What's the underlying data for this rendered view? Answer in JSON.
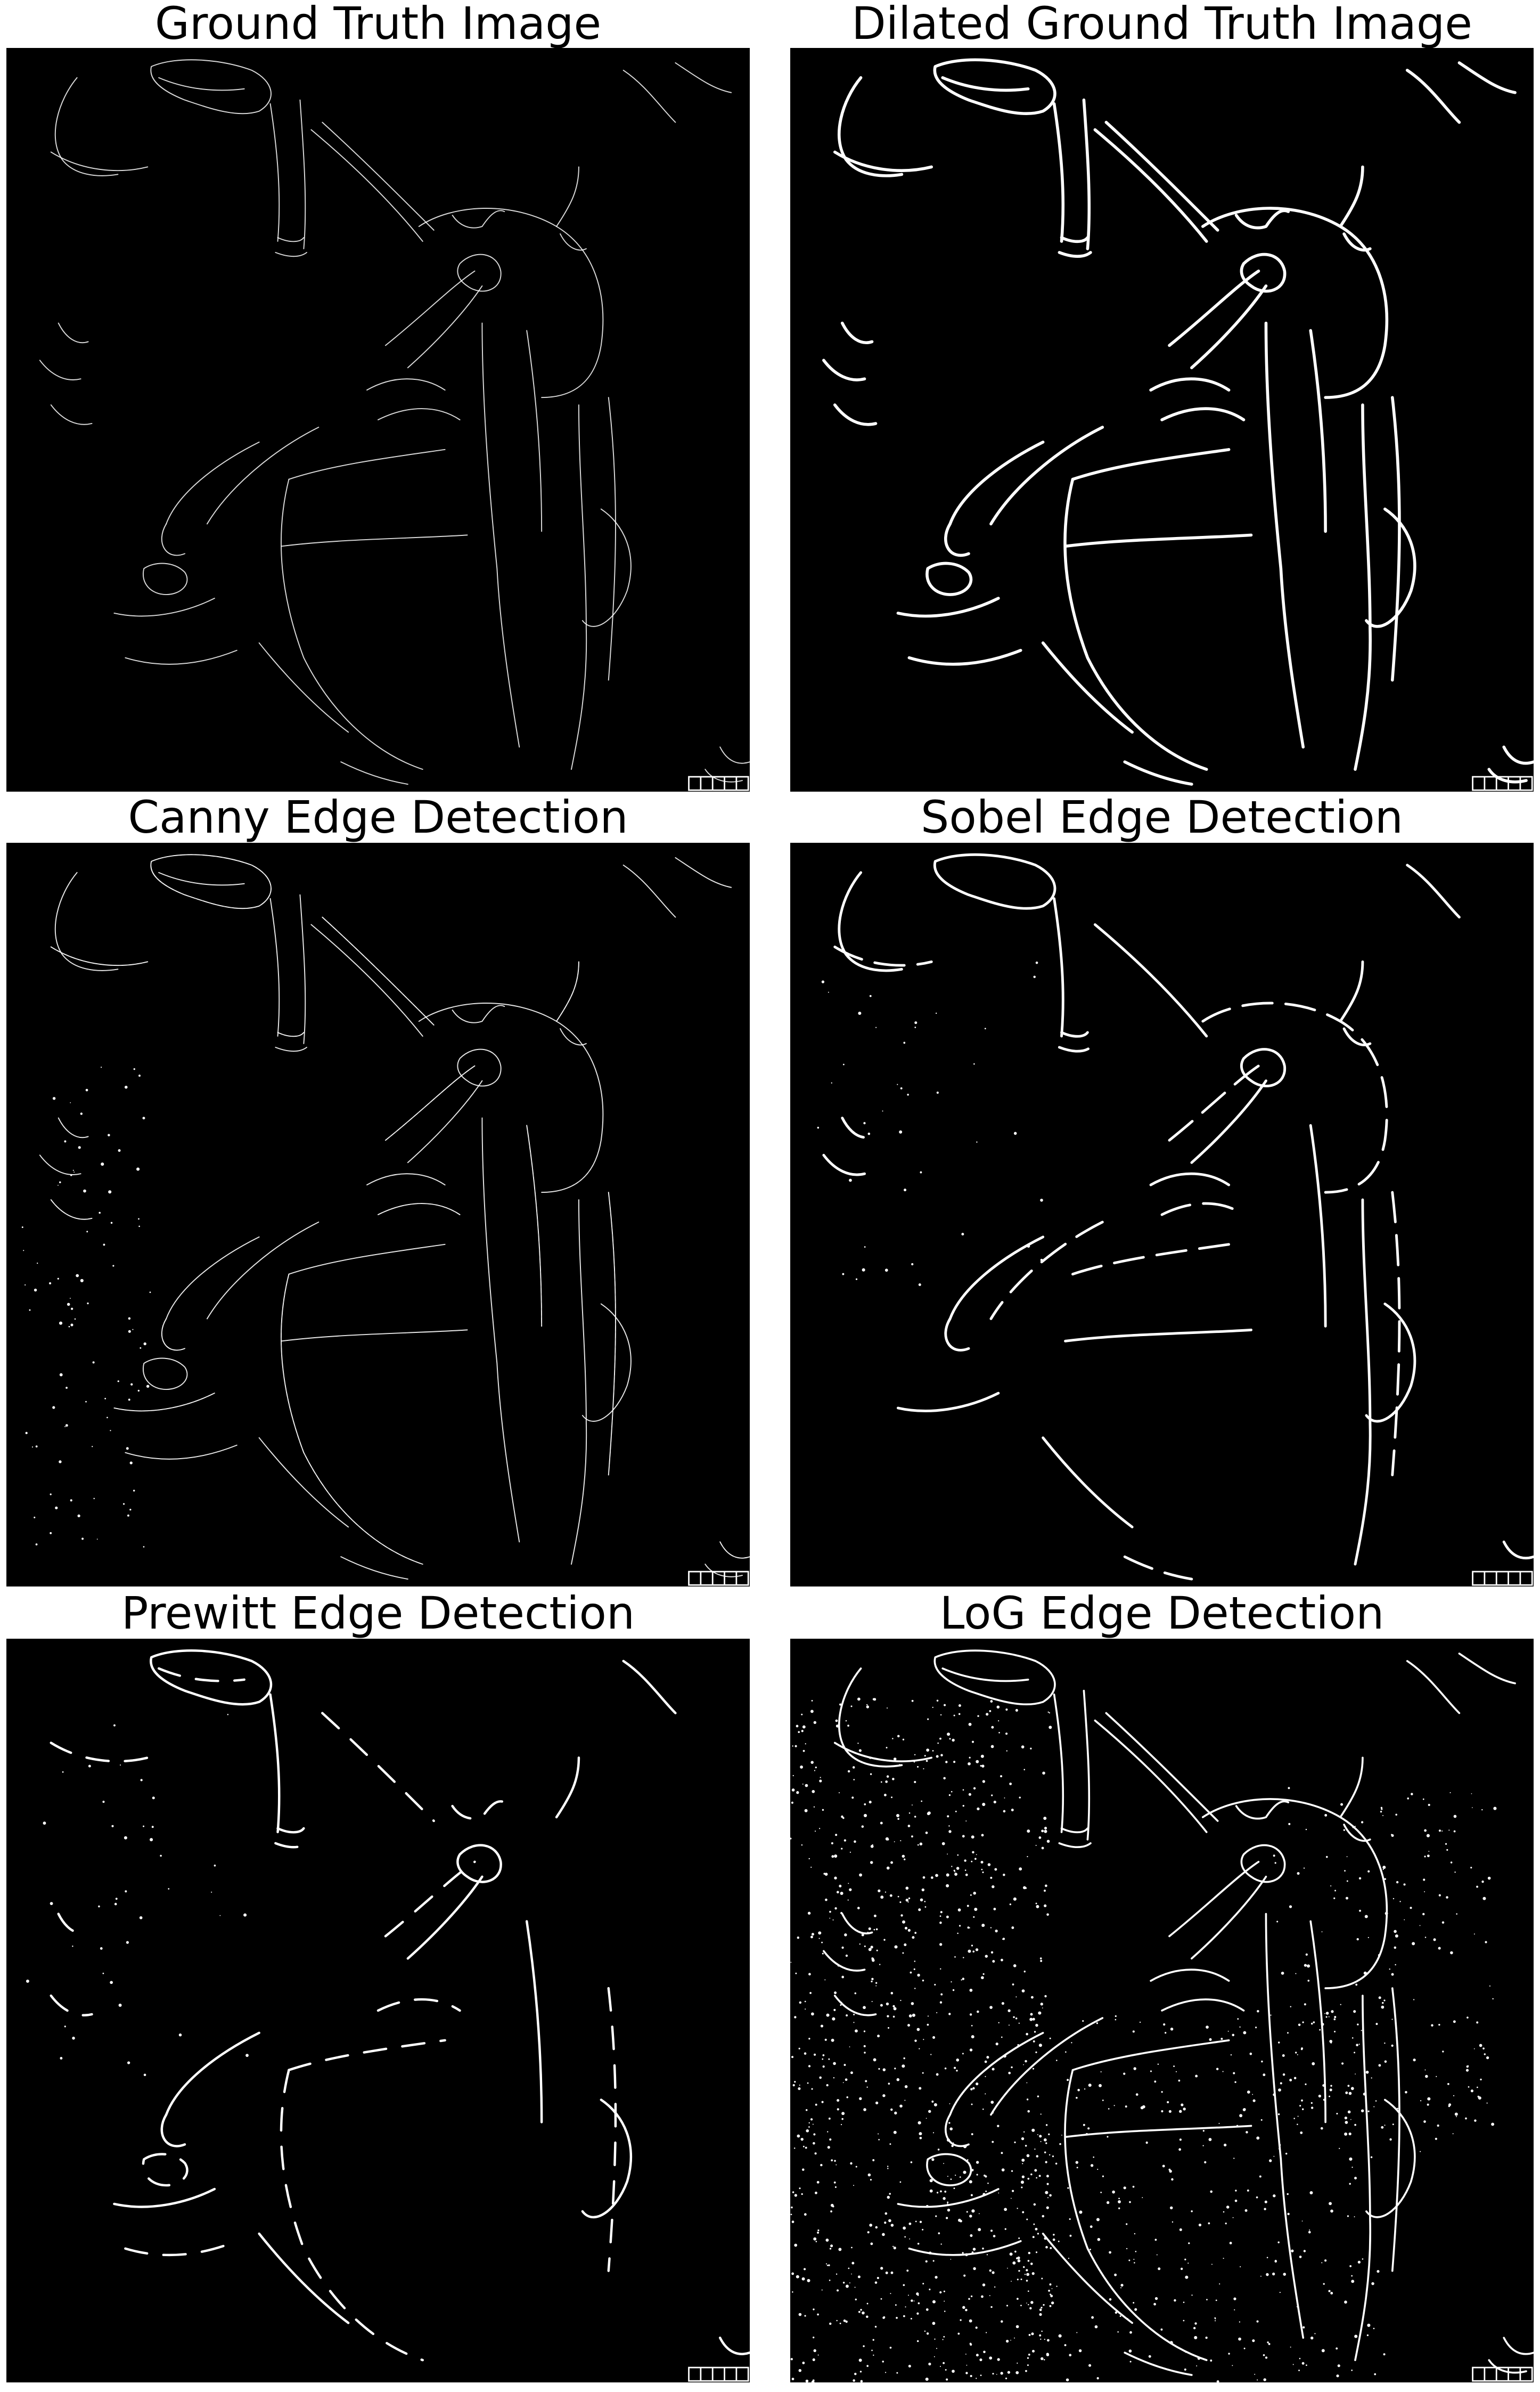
{
  "figure": {
    "panels": [
      {
        "id": "gt",
        "title": "Ground Truth Image",
        "style": "thin"
      },
      {
        "id": "dilated",
        "title": "Dilated Ground Truth Image",
        "style": "thick"
      },
      {
        "id": "canny",
        "title": "Canny Edge Detection",
        "style": "canny"
      },
      {
        "id": "sobel",
        "title": "Sobel Edge Detection",
        "style": "sobel"
      },
      {
        "id": "prewitt",
        "title": "Prewitt Edge Detection",
        "style": "prewitt"
      },
      {
        "id": "log",
        "title": "LoG Edge Detection",
        "style": "log"
      }
    ],
    "colors": {
      "background": "#000000",
      "edges": "#ffffff",
      "page": "#ffffff",
      "title_text": "#000000"
    }
  }
}
